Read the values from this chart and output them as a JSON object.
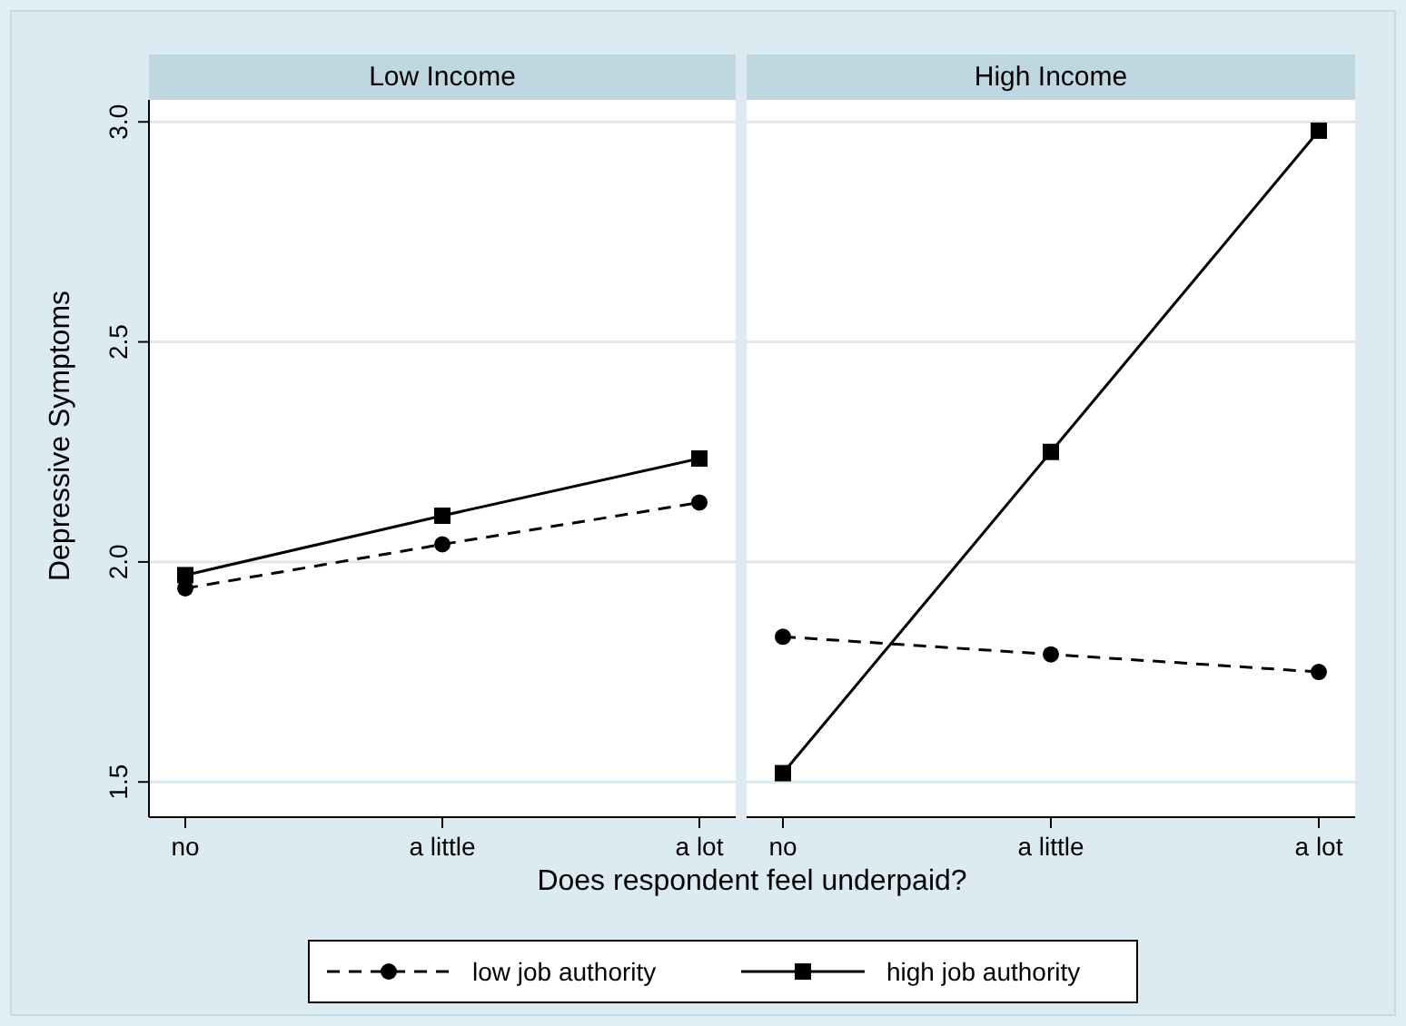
{
  "chart_data": [
    {
      "type": "line",
      "title": "Low Income",
      "xlabel": "Does respondent feel underpaid?",
      "ylabel": "Depressive Symptoms",
      "categories": [
        "no",
        "a little",
        "a lot"
      ],
      "ylim": [
        1.42,
        3.05
      ],
      "yticks": [
        1.5,
        {
          "value": 2,
          "label": "2.0"
        },
        2.5,
        {
          "value": 3,
          "label": "3.0"
        }
      ],
      "grid": "y",
      "legend": "bottom",
      "series": [
        {
          "name": "low job authority",
          "color": "#000000",
          "marker": "circle",
          "line_style": "dashed",
          "values": [
            1.94,
            2.04,
            2.135
          ]
        },
        {
          "name": "high job authority",
          "color": "#000000",
          "marker": "square",
          "line_style": "solid",
          "values": [
            1.97,
            2.105,
            2.235
          ]
        }
      ]
    },
    {
      "type": "line",
      "title": "High Income",
      "categories": [
        "no",
        "a little",
        "a lot"
      ],
      "ylim": [
        1.42,
        3.05
      ],
      "yticks": [
        1.5,
        2,
        2.5,
        3
      ],
      "grid": "y",
      "tick_labels": "x",
      "series": [
        {
          "name": "low job authority",
          "color": "#000000",
          "marker": "circle",
          "line_style": "dashed",
          "values": [
            1.83,
            1.79,
            1.75
          ]
        },
        {
          "name": "high job authority",
          "color": "#000000",
          "marker": "square",
          "line_style": "solid",
          "values": [
            1.52,
            2.25,
            2.98
          ]
        }
      ]
    }
  ]
}
